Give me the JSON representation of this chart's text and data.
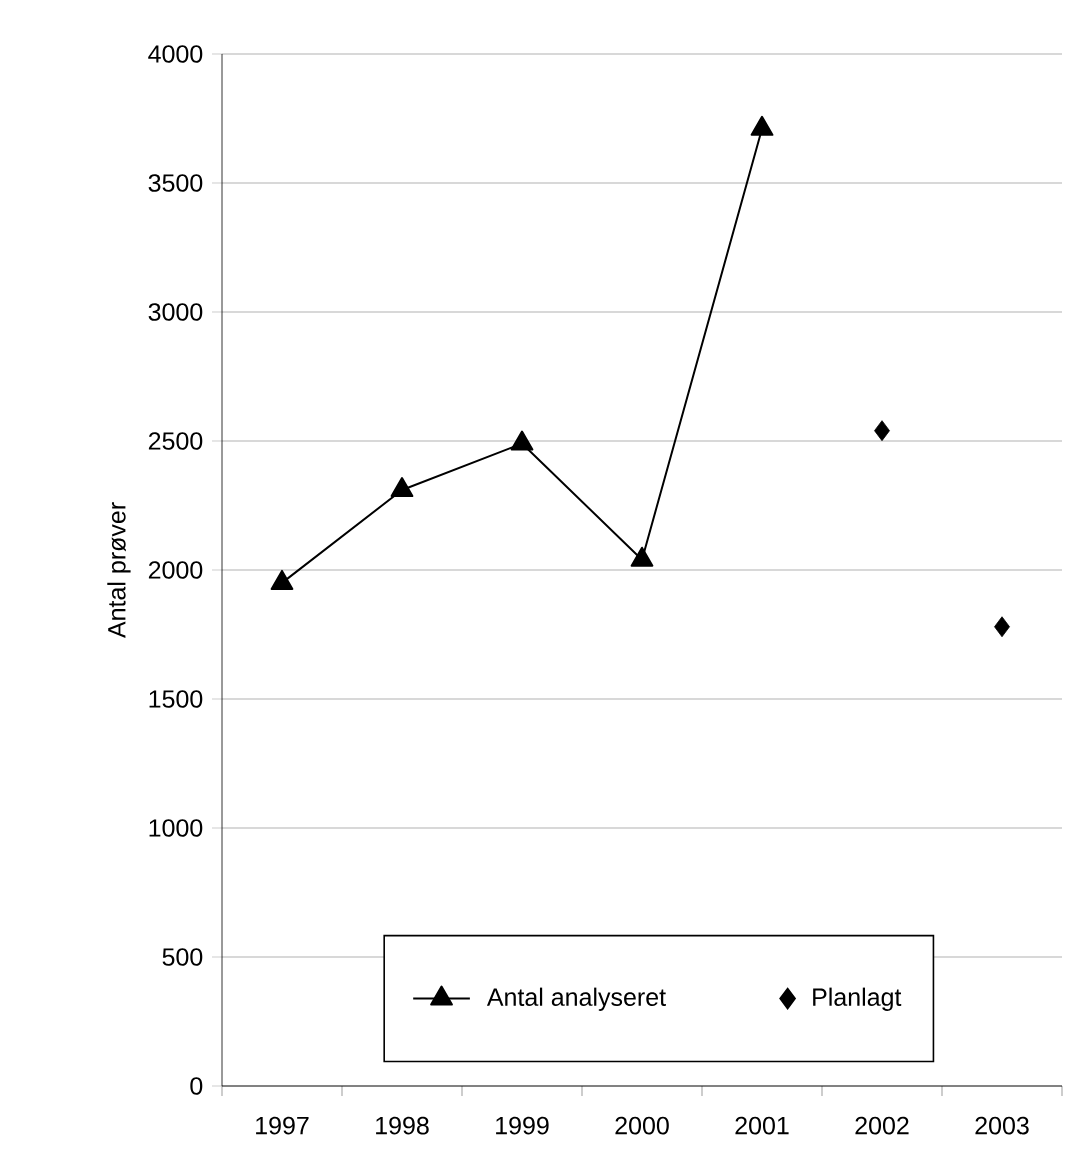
{
  "chart_data": {
    "type": "line",
    "ylabel": "Antal prøver",
    "categories": [
      "1997",
      "1998",
      "1999",
      "2000",
      "2001",
      "2002",
      "2003"
    ],
    "series": [
      {
        "name": "Antal analyseret",
        "type": "line",
        "color": "#000000",
        "marker": "triangle",
        "line_style": "solid",
        "values": [
          1950,
          2310,
          2490,
          2040,
          3710,
          null,
          null
        ]
      },
      {
        "name": "Planlagt",
        "type": "scatter",
        "color": "#000000",
        "marker": "diamond",
        "values": [
          null,
          null,
          null,
          null,
          null,
          2540,
          1780
        ]
      }
    ],
    "ylim": [
      0,
      4000
    ],
    "yticks": [
      0,
      500,
      1000,
      1500,
      2000,
      2500,
      3000,
      3500,
      4000
    ],
    "grid": "y",
    "legend": "bottom"
  }
}
